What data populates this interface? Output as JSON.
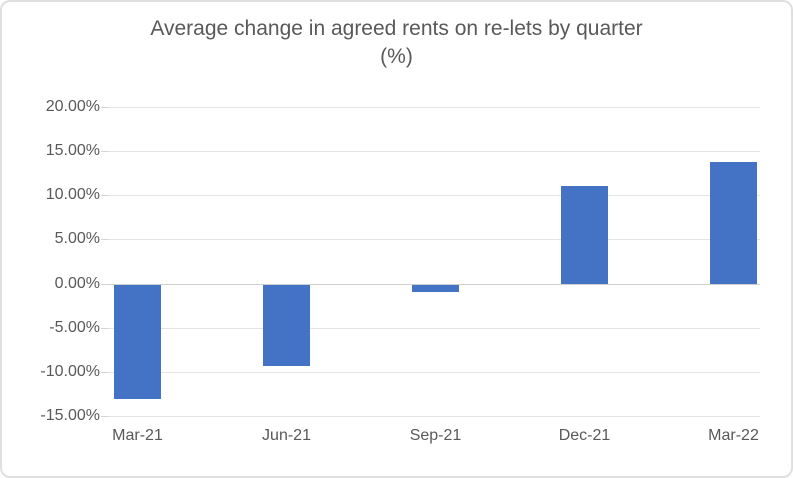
{
  "chart_data": {
    "type": "bar",
    "title": "Average change in agreed rents on re-lets by quarter",
    "title_line2": "(%)",
    "categories": [
      "Mar-21",
      "Jun-21",
      "Sep-21",
      "Dec-21",
      "Mar-22"
    ],
    "values": [
      -13.0,
      -9.2,
      -0.8,
      11.1,
      13.8
    ],
    "xlabel": "",
    "ylabel": "",
    "ylim": [
      -15,
      20
    ],
    "y_step": 5,
    "y_ticks": [
      {
        "value": 20,
        "label": "20.00%"
      },
      {
        "value": 15,
        "label": "15.00%"
      },
      {
        "value": 10,
        "label": "10.00%"
      },
      {
        "value": 5,
        "label": "5.00%"
      },
      {
        "value": 0,
        "label": "0.00%"
      },
      {
        "value": -5,
        "label": "-5.00%"
      },
      {
        "value": -10,
        "label": "-10.00%"
      },
      {
        "value": -15,
        "label": "-15.00%"
      }
    ],
    "grid": true,
    "legend_position": "none",
    "colors": {
      "bar": "#4472C4",
      "gridline": "#E4E4E4",
      "zero_line": "#CFCFCF",
      "tick": "#D4D4D4",
      "text": "#595959",
      "card_border": "#DFDFDF",
      "background": "#FFFFFF"
    }
  }
}
